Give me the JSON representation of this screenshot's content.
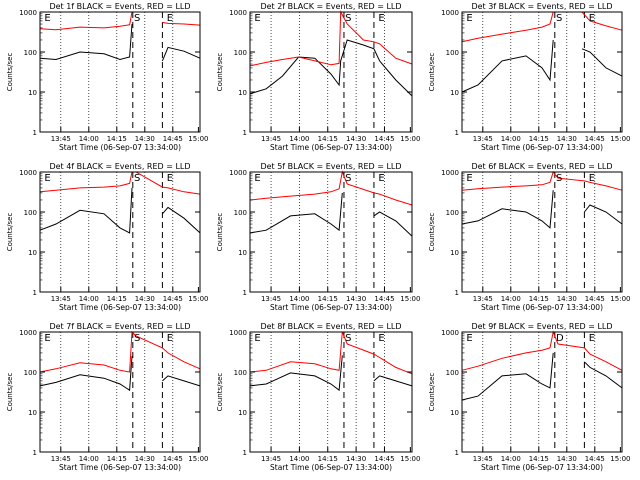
{
  "figure": {
    "xlabel": "Start Time (06-Sep-07 13:34:00)",
    "ylabel": "Counts/sec",
    "colors": {
      "events": "#000000",
      "lld": "#ff0000"
    }
  },
  "chart_data": [
    {
      "type": "line",
      "title": "Det 1f BLACK = Events, RED = LLD",
      "x_ticks": [
        "13:45",
        "14:00",
        "14:15",
        "14:30",
        "14:45",
        "15:00"
      ],
      "y_ticks": [
        "1",
        "10",
        "100",
        "1000"
      ],
      "ylim": [
        1,
        1000
      ],
      "y_scale": "log",
      "markers": [
        "E",
        "S",
        "E"
      ],
      "series": [
        {
          "name": "Events",
          "color": "#000000",
          "x": [
            0,
            0.1,
            0.25,
            0.4,
            0.5,
            0.56,
            0.575,
            0.6,
            0.765,
            0.8,
            0.9,
            1.0
          ],
          "y": [
            70,
            65,
            100,
            90,
            65,
            75,
            500,
            null,
            60,
            130,
            105,
            70
          ]
        },
        {
          "name": "LLD",
          "color": "#ff0000",
          "x": [
            0,
            0.1,
            0.25,
            0.4,
            0.5,
            0.56,
            0.575,
            0.6,
            0.765,
            0.8,
            0.9,
            1.0
          ],
          "y": [
            380,
            360,
            420,
            400,
            440,
            480,
            1000,
            null,
            550,
            520,
            500,
            470
          ]
        }
      ]
    },
    {
      "type": "line",
      "title": "Det 2f BLACK = Events, RED = LLD",
      "x_ticks": [
        "13:45",
        "14:00",
        "14:15",
        "14:30",
        "14:45",
        "15:00"
      ],
      "y_ticks": [
        "1",
        "10",
        "100",
        "1000"
      ],
      "ylim": [
        1,
        1000
      ],
      "y_scale": "log",
      "markers": [
        "E",
        "S",
        "E"
      ],
      "series": [
        {
          "name": "Events",
          "color": "#000000",
          "x": [
            0,
            0.1,
            0.2,
            0.3,
            0.4,
            0.5,
            0.55,
            0.56,
            0.6,
            0.7,
            0.765,
            0.8,
            0.9,
            1.0
          ],
          "y": [
            9,
            12,
            25,
            75,
            70,
            28,
            15,
            60,
            200,
            150,
            120,
            60,
            20,
            8
          ]
        },
        {
          "name": "LLD",
          "color": "#ff0000",
          "x": [
            0,
            0.1,
            0.2,
            0.3,
            0.4,
            0.5,
            0.55,
            0.56,
            0.6,
            0.7,
            0.765,
            0.8,
            0.9,
            1.0
          ],
          "y": [
            45,
            55,
            65,
            75,
            60,
            48,
            52,
            1000,
            500,
            200,
            180,
            160,
            70,
            50
          ]
        }
      ]
    },
    {
      "type": "line",
      "title": "Det 3f BLACK = Events, RED = LLD",
      "x_ticks": [
        "13:45",
        "14:00",
        "14:15",
        "14:30",
        "14:45",
        "15:00"
      ],
      "y_ticks": [
        "1",
        "10",
        "100",
        "1000"
      ],
      "ylim": [
        1,
        1000
      ],
      "y_scale": "log",
      "markers": [
        "E",
        "S",
        "E"
      ],
      "series": [
        {
          "name": "Events",
          "color": "#000000",
          "x": [
            0,
            0.1,
            0.25,
            0.4,
            0.5,
            0.55,
            0.57,
            0.6,
            0.75,
            0.8,
            0.9,
            1.0
          ],
          "y": [
            10,
            15,
            60,
            80,
            40,
            20,
            200,
            null,
            120,
            100,
            40,
            25
          ]
        },
        {
          "name": "LLD",
          "color": "#ff0000",
          "x": [
            0,
            0.1,
            0.25,
            0.4,
            0.5,
            0.55,
            0.57,
            0.6,
            0.75,
            0.8,
            0.9,
            1.0
          ],
          "y": [
            180,
            220,
            280,
            350,
            420,
            500,
            1000,
            1000,
            1000,
            600,
            450,
            350
          ]
        }
      ]
    },
    {
      "type": "line",
      "title": "Det 4f BLACK = Events, RED = LLD",
      "x_ticks": [
        "13:45",
        "14:00",
        "14:15",
        "14:30",
        "14:45",
        "15:00"
      ],
      "y_ticks": [
        "1",
        "10",
        "100",
        "1000"
      ],
      "ylim": [
        1,
        1000
      ],
      "y_scale": "log",
      "markers": [
        "E",
        "S",
        "E"
      ],
      "series": [
        {
          "name": "Events",
          "color": "#000000",
          "x": [
            0,
            0.1,
            0.25,
            0.4,
            0.5,
            0.56,
            0.575,
            0.6,
            0.765,
            0.8,
            0.9,
            1.0
          ],
          "y": [
            35,
            50,
            110,
            90,
            40,
            30,
            400,
            null,
            90,
            130,
            70,
            30
          ]
        },
        {
          "name": "LLD",
          "color": "#ff0000",
          "x": [
            0,
            0.1,
            0.25,
            0.4,
            0.5,
            0.56,
            0.575,
            0.6,
            0.765,
            0.8,
            0.9,
            1.0
          ],
          "y": [
            320,
            350,
            400,
            420,
            450,
            520,
            1000,
            1000,
            420,
            400,
            320,
            280
          ]
        }
      ]
    },
    {
      "type": "line",
      "title": "Det 5f BLACK = Events, RED = LLD",
      "x_ticks": [
        "13:45",
        "14:00",
        "14:15",
        "14:30",
        "14:45",
        "15:00"
      ],
      "y_ticks": [
        "1",
        "10",
        "100",
        "1000"
      ],
      "ylim": [
        1,
        1000
      ],
      "y_scale": "log",
      "markers": [
        "E",
        "S",
        "E"
      ],
      "series": [
        {
          "name": "Events",
          "color": "#000000",
          "x": [
            0,
            0.1,
            0.25,
            0.4,
            0.5,
            0.55,
            0.57,
            0.6,
            0.765,
            0.8,
            0.9,
            1.0
          ],
          "y": [
            30,
            35,
            80,
            90,
            50,
            35,
            300,
            null,
            80,
            100,
            60,
            25
          ]
        },
        {
          "name": "LLD",
          "color": "#ff0000",
          "x": [
            0,
            0.1,
            0.25,
            0.4,
            0.5,
            0.55,
            0.57,
            0.6,
            0.765,
            0.8,
            0.9,
            1.0
          ],
          "y": [
            200,
            220,
            250,
            280,
            320,
            380,
            1000,
            500,
            300,
            280,
            200,
            150
          ]
        }
      ]
    },
    {
      "type": "line",
      "title": "Det 6f BLACK = Events, RED = LLD",
      "x_ticks": [
        "13:45",
        "14:00",
        "14:15",
        "14:30",
        "14:45",
        "15:00"
      ],
      "y_ticks": [
        "1",
        "10",
        "100",
        "1000"
      ],
      "ylim": [
        1,
        1000
      ],
      "y_scale": "log",
      "markers": [
        "E",
        "S",
        "E"
      ],
      "series": [
        {
          "name": "Events",
          "color": "#000000",
          "x": [
            0,
            0.1,
            0.25,
            0.4,
            0.5,
            0.55,
            0.57,
            0.6,
            0.765,
            0.8,
            0.9,
            1.0
          ],
          "y": [
            50,
            60,
            120,
            100,
            60,
            40,
            350,
            null,
            100,
            150,
            100,
            50
          ]
        },
        {
          "name": "LLD",
          "color": "#ff0000",
          "x": [
            0,
            0.1,
            0.25,
            0.4,
            0.5,
            0.55,
            0.57,
            0.6,
            0.765,
            0.8,
            0.9,
            1.0
          ],
          "y": [
            350,
            380,
            420,
            450,
            480,
            550,
            1000,
            700,
            600,
            550,
            450,
            350
          ]
        }
      ]
    },
    {
      "type": "line",
      "title": "Det 7f BLACK = Events, RED = LLD",
      "x_ticks": [
        "13:45",
        "14:00",
        "14:15",
        "14:30",
        "14:45",
        "15:00"
      ],
      "y_ticks": [
        "1",
        "10",
        "100",
        "1000"
      ],
      "ylim": [
        1,
        1000
      ],
      "y_scale": "log",
      "markers": [
        "E",
        "S",
        "E"
      ],
      "series": [
        {
          "name": "Events",
          "color": "#000000",
          "x": [
            0,
            0.1,
            0.25,
            0.4,
            0.5,
            0.56,
            0.575,
            0.6,
            0.765,
            0.8,
            0.9,
            1.0
          ],
          "y": [
            45,
            55,
            85,
            70,
            50,
            35,
            250,
            null,
            60,
            80,
            60,
            45
          ]
        },
        {
          "name": "LLD",
          "color": "#ff0000",
          "x": [
            0,
            0.1,
            0.25,
            0.4,
            0.5,
            0.56,
            0.575,
            0.6,
            0.765,
            0.8,
            0.9,
            1.0
          ],
          "y": [
            100,
            120,
            170,
            150,
            110,
            100,
            1000,
            800,
            400,
            300,
            180,
            120
          ]
        }
      ]
    },
    {
      "type": "line",
      "title": "Det 8f BLACK = Events, RED = LLD",
      "x_ticks": [
        "13:45",
        "14:00",
        "14:15",
        "14:30",
        "14:45",
        "15:00"
      ],
      "y_ticks": [
        "1",
        "10",
        "100",
        "1000"
      ],
      "ylim": [
        1,
        1000
      ],
      "y_scale": "log",
      "markers": [
        "E",
        "S",
        "E"
      ],
      "series": [
        {
          "name": "Events",
          "color": "#000000",
          "x": [
            0,
            0.1,
            0.25,
            0.4,
            0.5,
            0.55,
            0.57,
            0.6,
            0.765,
            0.8,
            0.9,
            1.0
          ],
          "y": [
            45,
            50,
            95,
            80,
            50,
            35,
            260,
            null,
            60,
            80,
            60,
            45
          ]
        },
        {
          "name": "LLD",
          "color": "#ff0000",
          "x": [
            0,
            0.1,
            0.25,
            0.4,
            0.5,
            0.55,
            0.57,
            0.6,
            0.765,
            0.8,
            0.9,
            1.0
          ],
          "y": [
            100,
            110,
            180,
            160,
            120,
            110,
            1000,
            500,
            280,
            230,
            130,
            90
          ]
        }
      ]
    },
    {
      "type": "line",
      "title": "Det 9f BLACK = Events, RED = LLD",
      "x_ticks": [
        "13:45",
        "14:00",
        "14:15",
        "14:30",
        "14:45",
        "15:00"
      ],
      "y_ticks": [
        "1",
        "10",
        "100",
        "1000"
      ],
      "ylim": [
        1,
        1000
      ],
      "y_scale": "log",
      "markers": [
        "E",
        "D",
        "E"
      ],
      "series": [
        {
          "name": "Events",
          "color": "#000000",
          "x": [
            0,
            0.1,
            0.25,
            0.4,
            0.5,
            0.55,
            0.57,
            0.6,
            0.765,
            0.8,
            0.9,
            1.0
          ],
          "y": [
            20,
            25,
            80,
            90,
            50,
            40,
            300,
            null,
            180,
            130,
            80,
            40
          ]
        },
        {
          "name": "LLD",
          "color": "#ff0000",
          "x": [
            0,
            0.1,
            0.25,
            0.4,
            0.5,
            0.55,
            0.57,
            0.6,
            0.765,
            0.8,
            0.9,
            1.0
          ],
          "y": [
            110,
            140,
            220,
            300,
            350,
            400,
            1000,
            500,
            400,
            280,
            180,
            110
          ]
        }
      ]
    }
  ]
}
